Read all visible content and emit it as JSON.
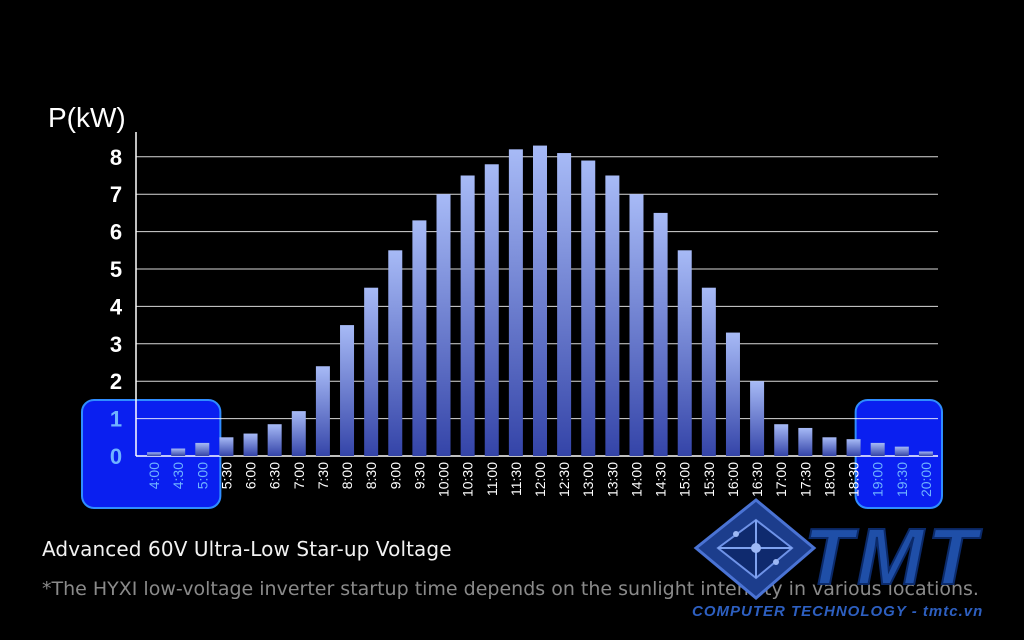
{
  "chart_data": {
    "type": "bar",
    "ylabel": "P(kW)",
    "xlabel": "",
    "ylim": [
      0,
      8.8
    ],
    "yticks": [
      0,
      1,
      2,
      3,
      4,
      5,
      6,
      7,
      8
    ],
    "grid": true,
    "categories": [
      "4:00",
      "4:30",
      "5:00",
      "5:30",
      "6:00",
      "6:30",
      "7:00",
      "7:30",
      "8:00",
      "8:30",
      "9:00",
      "9:30",
      "10:00",
      "10:30",
      "11:00",
      "11:30",
      "12:00",
      "12:30",
      "13:00",
      "13:30",
      "14:00",
      "14:30",
      "15:00",
      "15:30",
      "16:00",
      "16:30",
      "17:00",
      "17:30",
      "18:00",
      "18:30",
      "19:00",
      "19:30",
      "20:00"
    ],
    "values": [
      0.1,
      0.2,
      0.35,
      0.5,
      0.6,
      0.85,
      1.2,
      2.4,
      3.5,
      4.5,
      5.5,
      6.3,
      7.0,
      7.5,
      7.8,
      8.2,
      8.3,
      8.1,
      7.9,
      7.5,
      7.0,
      6.5,
      5.5,
      4.5,
      3.3,
      2.0,
      0.85,
      0.75,
      0.5,
      0.45,
      0.35,
      0.25,
      0.12
    ],
    "highlighted_categories": [
      "4:00",
      "4:30",
      "5:00",
      "19:00",
      "19:30",
      "20:00"
    ],
    "colors": {
      "bar_top": "#a7baf6",
      "bar_bottom": "#3444a8",
      "highlight": "#0a1ff0",
      "highlight_border": "#2f8dff",
      "highlight_label": "#6fb3ff",
      "grid": "#ffffff"
    }
  },
  "caption": "Advanced 60V Ultra-Low Star-up Voltage",
  "footnote": "*The HYXI low-voltage inverter startup time depends on the sunlight intensity in various locations.",
  "watermark": {
    "brand": "TMT",
    "tagline": "COMPUTER TECHNOLOGY - tmtc.vn"
  }
}
